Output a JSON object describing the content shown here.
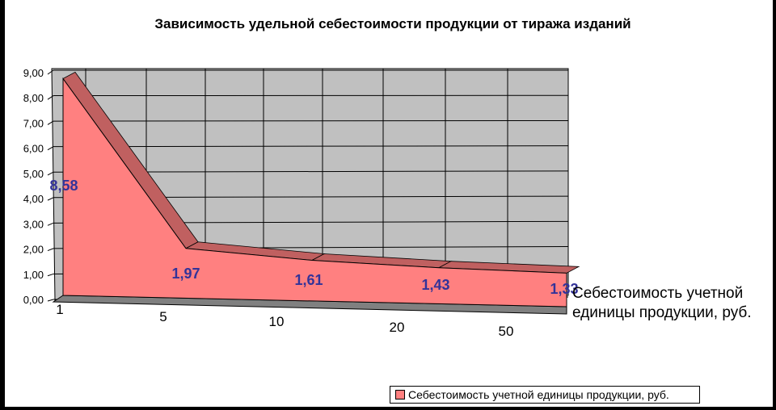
{
  "chart_data": {
    "type": "area",
    "title": "Зависимость удельной себестоимости продукции от тиража изданий",
    "categories": [
      "1",
      "5",
      "10",
      "20",
      "50"
    ],
    "series": [
      {
        "name": "Себестоимость учетной единицы продукции, руб.",
        "values": [
          8.58,
          1.97,
          1.61,
          1.43,
          1.33
        ]
      }
    ],
    "data_labels": [
      "8,58",
      "1,97",
      "1,61",
      "1,43",
      "1,33"
    ],
    "y_ticks": [
      "0,00",
      "1,00",
      "2,00",
      "3,00",
      "4,00",
      "5,00",
      "6,00",
      "7,00",
      "8,00",
      "9,00"
    ],
    "ylim": [
      0,
      9
    ],
    "grid": true,
    "series_axis_label": "Себестоимость учетной единицы продукции, руб.",
    "legend": {
      "position": "bottom-right",
      "label": "Себестоимость учетной единицы продукции, руб."
    },
    "colors": {
      "front": "#ff8080",
      "top": "#c06060",
      "wall": "#c0c0c0",
      "floor": "#808080",
      "labels": "#333399"
    }
  }
}
